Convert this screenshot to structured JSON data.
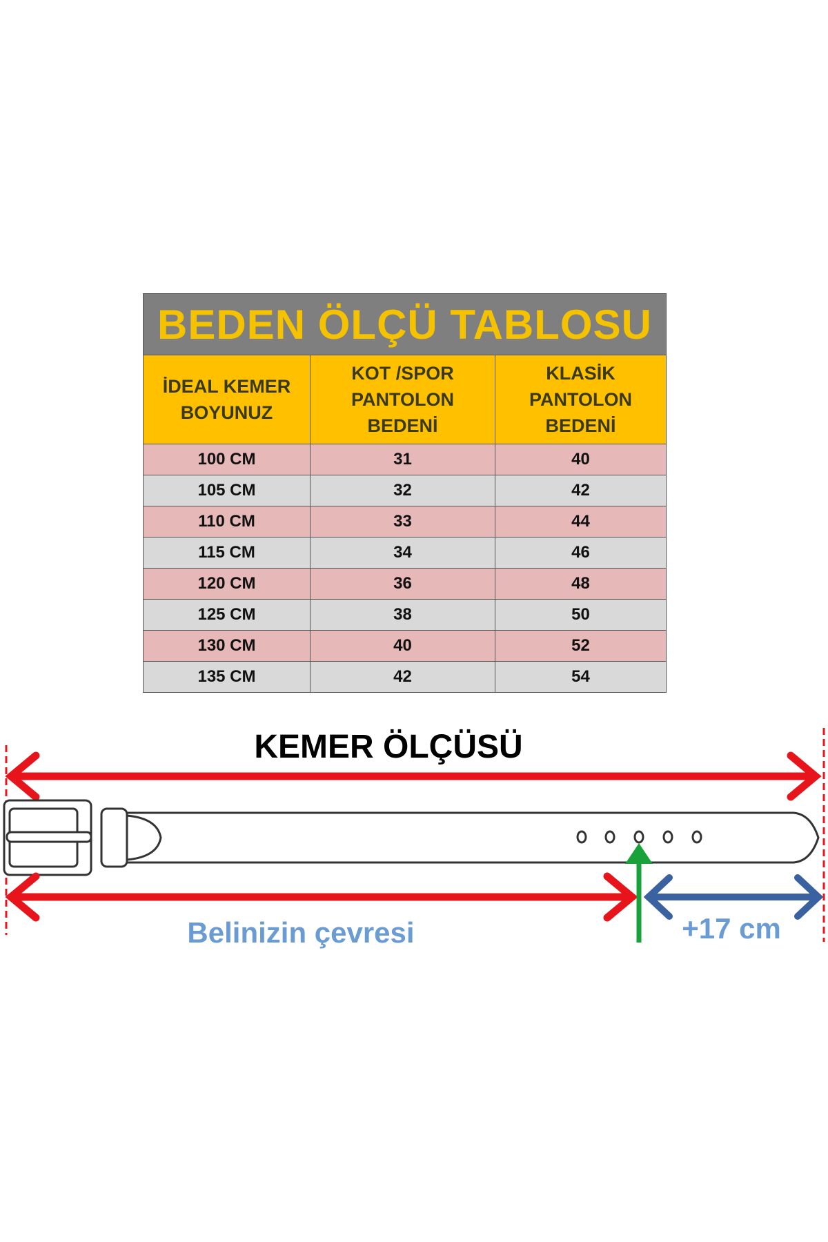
{
  "table": {
    "title": "BEDEN ÖLÇÜ TABLOSU",
    "headers": [
      "İDEAL KEMER\nBOYUNUZ",
      "KOT /SPOR\nPANTOLON\nBEDENİ",
      "KLASİK\nPANTOLON\nBEDENİ"
    ],
    "rows": [
      [
        "100 CM",
        "31",
        "40"
      ],
      [
        "105 CM",
        "32",
        "42"
      ],
      [
        "110 CM",
        "33",
        "44"
      ],
      [
        "115 CM",
        "34",
        "46"
      ],
      [
        "120 CM",
        "36",
        "48"
      ],
      [
        "125 CM",
        "38",
        "50"
      ],
      [
        "130 CM",
        "40",
        "52"
      ],
      [
        "135 CM",
        "42",
        "54"
      ]
    ]
  },
  "diagram": {
    "title": "KEMER ÖLÇÜSÜ",
    "waist_label": "Belinizin çevresi",
    "extra_label": "+17 cm",
    "colors": {
      "red": "#e8141b",
      "blue": "#3a62a0",
      "green": "#1aa23a",
      "label_blue": "#6a9bd2"
    }
  }
}
